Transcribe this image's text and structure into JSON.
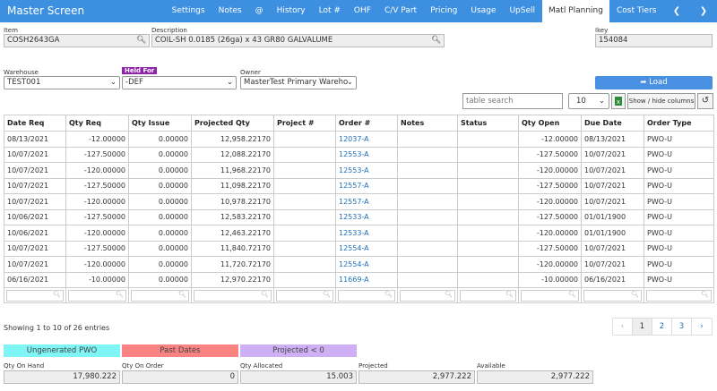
{
  "header": {
    "title": "Master Screen",
    "tabs": [
      {
        "label": "Settings"
      },
      {
        "label": "Notes"
      },
      {
        "label": "@"
      },
      {
        "label": "History"
      },
      {
        "label": "Lot #"
      },
      {
        "label": "OHF"
      },
      {
        "label": "C/V Part"
      },
      {
        "label": "Pricing"
      },
      {
        "label": "Usage"
      },
      {
        "label": "UpSell"
      },
      {
        "label": "Matl Planning",
        "active": true
      },
      {
        "label": "Cost Tiers"
      }
    ]
  },
  "fields": {
    "item": {
      "label": "Item",
      "value": "COSH2643GA"
    },
    "description": {
      "label": "Description",
      "value": "COIL-SH 0.0185 (26ga) x 43 GR80 GALVALUME"
    },
    "ikey": {
      "label": "Ikey",
      "value": "154084"
    },
    "warehouse": {
      "label": "Warehouse",
      "value": "TEST001"
    },
    "held_for": {
      "label": "Held For",
      "value": "-DEF"
    },
    "owner": {
      "label": "Owner",
      "value": "MasterTest Primary Wareho"
    }
  },
  "toolbar": {
    "load": "Load",
    "search_placeholder": "table search",
    "page_size": "10",
    "columns_button": "Show / hide columns"
  },
  "table": {
    "columns": [
      "Date Req",
      "Qty Req",
      "Qty Issue",
      "Projected Qty",
      "Project #",
      "Order #",
      "Notes",
      "Status",
      "Qty Open",
      "Due Date",
      "Order Type"
    ],
    "rows": [
      [
        "08/13/2021",
        "-12.00000",
        "0.00000",
        "12,958.22170",
        null,
        "12037-A",
        null,
        null,
        "-12.00000",
        "08/13/2021",
        "PWO-U"
      ],
      [
        "10/07/2021",
        "-127.50000",
        "0.00000",
        "12,088.22170",
        null,
        "12553-A",
        null,
        null,
        "-127.50000",
        "10/07/2021",
        "PWO-U"
      ],
      [
        "10/07/2021",
        "-120.00000",
        "0.00000",
        "11,968.22170",
        null,
        "12553-A",
        null,
        null,
        "-120.00000",
        "10/07/2021",
        "PWO-U"
      ],
      [
        "10/07/2021",
        "-127.50000",
        "0.00000",
        "11,098.22170",
        null,
        "12557-A",
        null,
        null,
        "-127.50000",
        "10/07/2021",
        "PWO-U"
      ],
      [
        "10/07/2021",
        "-120.00000",
        "0.00000",
        "10,978.22170",
        null,
        "12557-A",
        null,
        null,
        "-120.00000",
        "10/07/2021",
        "PWO-U"
      ],
      [
        "10/06/2021",
        "-127.50000",
        "0.00000",
        "12,583.22170",
        null,
        "12533-A",
        null,
        null,
        "-127.50000",
        "01/01/1900",
        "PWO-U"
      ],
      [
        "10/06/2021",
        "-120.00000",
        "0.00000",
        "12,463.22170",
        null,
        "12533-A",
        null,
        null,
        "-120.00000",
        "01/01/1900",
        "PWO-U"
      ],
      [
        "10/07/2021",
        "-127.50000",
        "0.00000",
        "11,840.72170",
        null,
        "12554-A",
        null,
        null,
        "-127.50000",
        "10/07/2021",
        "PWO-U"
      ],
      [
        "10/07/2021",
        "-120.00000",
        "0.00000",
        "11,720.72170",
        null,
        "12554-A",
        null,
        null,
        "-120.00000",
        "10/07/2021",
        "PWO-U"
      ],
      [
        "06/16/2021",
        "-10.00000",
        "0.00000",
        "12,970.22170",
        null,
        "11669-A",
        null,
        null,
        "-10.00000",
        "06/16/2021",
        "PWO-U"
      ]
    ]
  },
  "footer": {
    "info": "Showing 1 to 10 of 26 entries",
    "pages": [
      1,
      2,
      3
    ],
    "legend": [
      {
        "label": "Ungenerated PWO",
        "color": "#7ff5f5"
      },
      {
        "label": "Past Dates",
        "color": "#f98282"
      },
      {
        "label": "Projected < 0",
        "color": "#cfb0f5"
      }
    ],
    "totals": [
      {
        "label": "Qty On Hand",
        "value": "17,980.222"
      },
      {
        "label": "Qty On Order",
        "value": "0"
      },
      {
        "label": "Qty Allocated",
        "value": "15.003"
      },
      {
        "label": "Projected",
        "value": "2,977.222"
      },
      {
        "label": "Available",
        "value": "2,977.222"
      }
    ]
  }
}
